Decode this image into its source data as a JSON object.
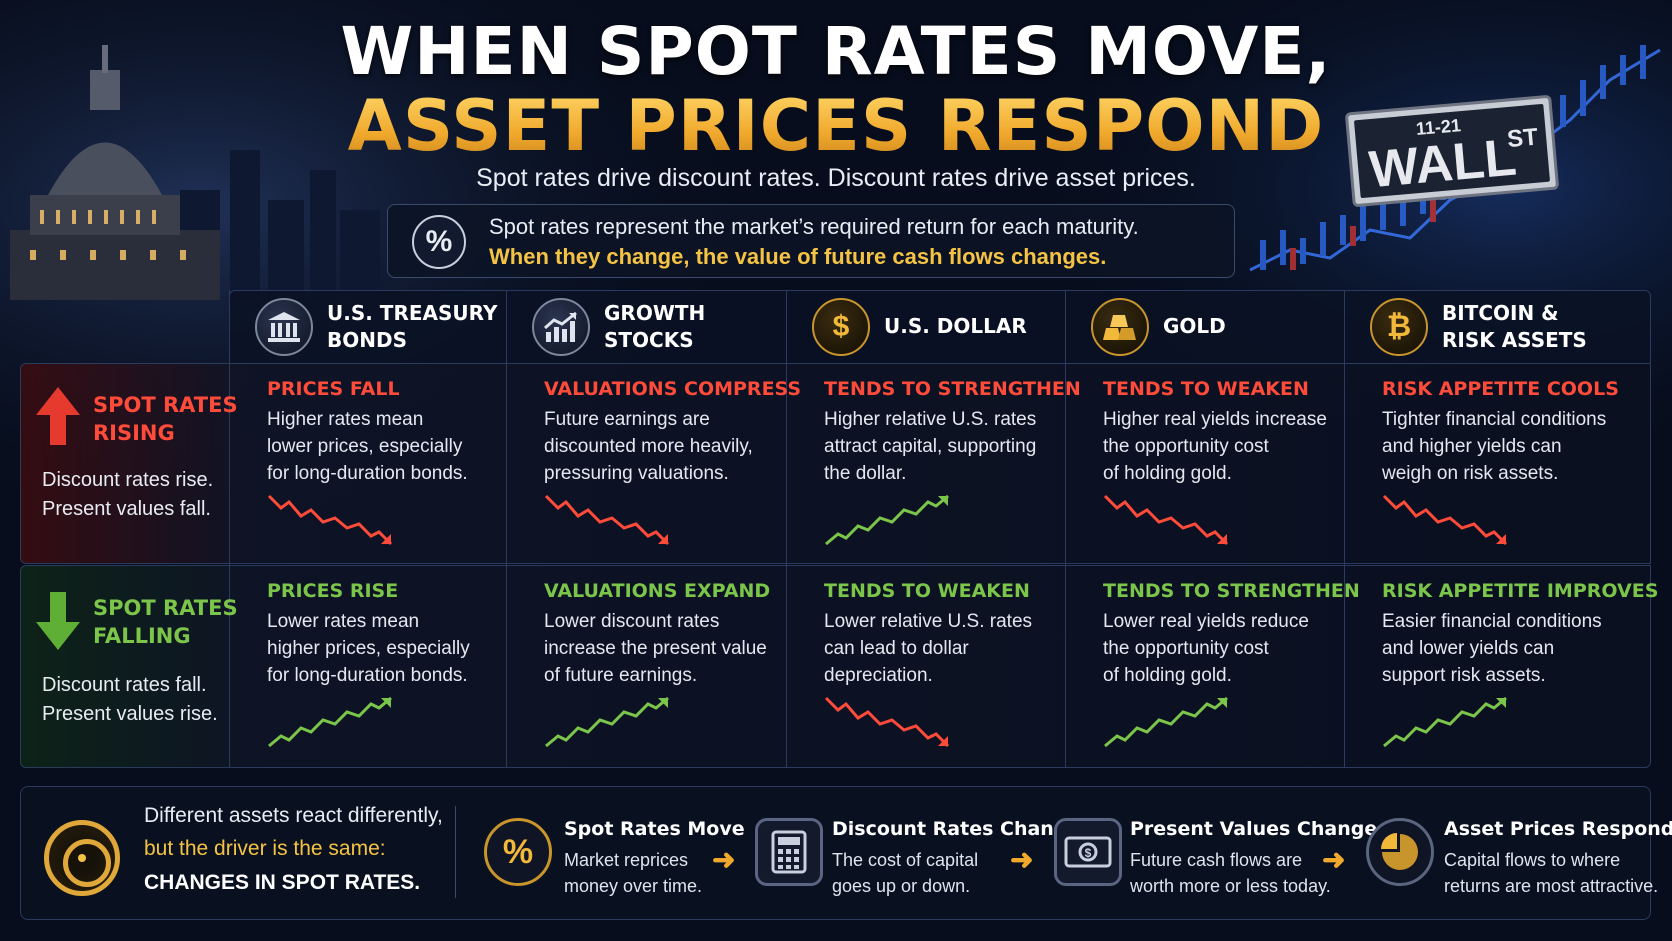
{
  "title": {
    "line1": "WHEN SPOT RATES MOVE,",
    "line2": "ASSET PRICES RESPOND",
    "subtitle": "Spot rates drive discount rates. Discount rates drive asset prices."
  },
  "definition": {
    "line1": "Spot rates represent the market’s required return for each maturity.",
    "line2": "When they change, the value of future cash flows changes."
  },
  "street_sign": {
    "number": "11-21",
    "name": "WALL",
    "suffix": "ST"
  },
  "columns": [
    {
      "label_lines": [
        "U.S. TREASURY",
        "BONDS"
      ],
      "icon": "bank-icon"
    },
    {
      "label_lines": [
        "GROWTH",
        "STOCKS"
      ],
      "icon": "growth-chart-icon"
    },
    {
      "label_lines": [
        "U.S. DOLLAR"
      ],
      "icon": "dollar-icon"
    },
    {
      "label_lines": [
        "GOLD"
      ],
      "icon": "gold-bars-icon"
    },
    {
      "label_lines": [
        "BITCOIN &",
        "RISK ASSETS"
      ],
      "icon": "bitcoin-icon"
    }
  ],
  "rows": {
    "rising": {
      "title_lines": [
        "SPOT RATES",
        "RISING"
      ],
      "desc_lines": [
        "Discount rates rise.",
        "Present values fall."
      ],
      "color": "#ff4b3a",
      "cells": [
        {
          "heading": "PRICES FALL",
          "text_lines": [
            "Higher rates mean",
            "lower prices, especially",
            "for long-duration bonds."
          ],
          "trend": "down"
        },
        {
          "heading": "VALUATIONS COMPRESS",
          "text_lines": [
            "Future earnings are",
            "discounted more heavily,",
            "pressuring valuations."
          ],
          "trend": "down"
        },
        {
          "heading": "TENDS TO STRENGTHEN",
          "text_lines": [
            "Higher relative U.S. rates",
            "attract capital, supporting",
            "the dollar."
          ],
          "trend": "up"
        },
        {
          "heading": "TENDS TO WEAKEN",
          "text_lines": [
            "Higher real yields increase",
            "the opportunity cost",
            "of holding gold."
          ],
          "trend": "down"
        },
        {
          "heading": "RISK APPETITE COOLS",
          "text_lines": [
            "Tighter financial conditions",
            "and higher yields can",
            "weigh on risk assets."
          ],
          "trend": "down"
        }
      ]
    },
    "falling": {
      "title_lines": [
        "SPOT RATES",
        "FALLING"
      ],
      "desc_lines": [
        "Discount rates fall.",
        "Present values rise."
      ],
      "color": "#7bc64a",
      "cells": [
        {
          "heading": "PRICES RISE",
          "text_lines": [
            "Lower rates mean",
            "higher prices, especially",
            "for long-duration bonds."
          ],
          "trend": "up"
        },
        {
          "heading": "VALUATIONS EXPAND",
          "text_lines": [
            "Lower discount rates",
            "increase the present value",
            "of future earnings."
          ],
          "trend": "up"
        },
        {
          "heading": "TENDS TO WEAKEN",
          "text_lines": [
            "Lower relative U.S. rates",
            "can lead to dollar",
            "depreciation."
          ],
          "trend": "down"
        },
        {
          "heading": "TENDS TO STRENGTHEN",
          "text_lines": [
            "Lower real yields reduce",
            "the opportunity cost",
            "of holding gold."
          ],
          "trend": "up"
        },
        {
          "heading": "RISK APPETITE IMPROVES",
          "text_lines": [
            "Easier financial conditions",
            "and lower yields can",
            "support risk assets."
          ],
          "trend": "up"
        }
      ]
    }
  },
  "summary": {
    "line1": "Different assets react differently,",
    "line2": "but the driver is the same:",
    "line3": "CHANGES IN SPOT RATES."
  },
  "steps": [
    {
      "title": "Spot Rates Move",
      "desc_lines": [
        "Market reprices",
        "money over time."
      ],
      "icon": "percent-icon"
    },
    {
      "title": "Discount Rates Change",
      "desc_lines": [
        "The cost of capital",
        "goes up or down."
      ],
      "icon": "calculator-icon"
    },
    {
      "title": "Present Values Change",
      "desc_lines": [
        "Future cash flows are",
        "worth more or less today."
      ],
      "icon": "cash-icon"
    },
    {
      "title": "Asset Prices Respond",
      "desc_lines": [
        "Capital flows to where",
        "returns are most attractive."
      ],
      "icon": "pie-chart-icon"
    }
  ],
  "colors": {
    "accent_gold": "#f5c344",
    "down_red": "#ff4b3a",
    "up_green": "#7bc64a",
    "background": "#070d1c"
  }
}
